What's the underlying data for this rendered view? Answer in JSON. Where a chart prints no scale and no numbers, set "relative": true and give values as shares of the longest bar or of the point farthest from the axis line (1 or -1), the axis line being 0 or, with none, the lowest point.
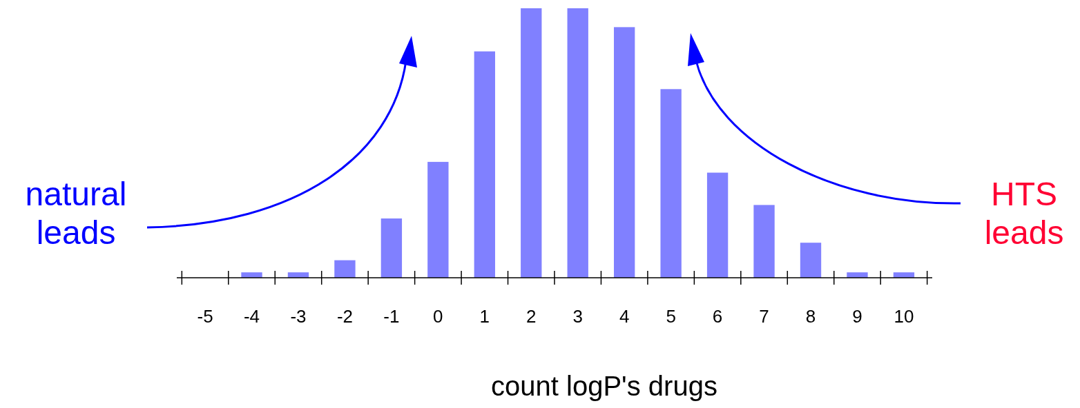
{
  "chart_data": {
    "type": "bar",
    "relative": true,
    "xlabel": "count logP's drugs",
    "color": "#8080ff",
    "categories": [
      "-5",
      "-4",
      "-3",
      "-2",
      "-1",
      "0",
      "1",
      "2",
      "3",
      "4",
      "5",
      "6",
      "7",
      "8",
      "9",
      "10"
    ],
    "values": [
      0,
      0.02,
      0.02,
      0.065,
      0.22,
      0.43,
      0.84,
      1,
      1,
      0.93,
      0.7,
      0.39,
      0.27,
      0.13,
      0.02,
      0.02
    ],
    "annotations": [
      "natural leads",
      "HTS leads"
    ]
  }
}
